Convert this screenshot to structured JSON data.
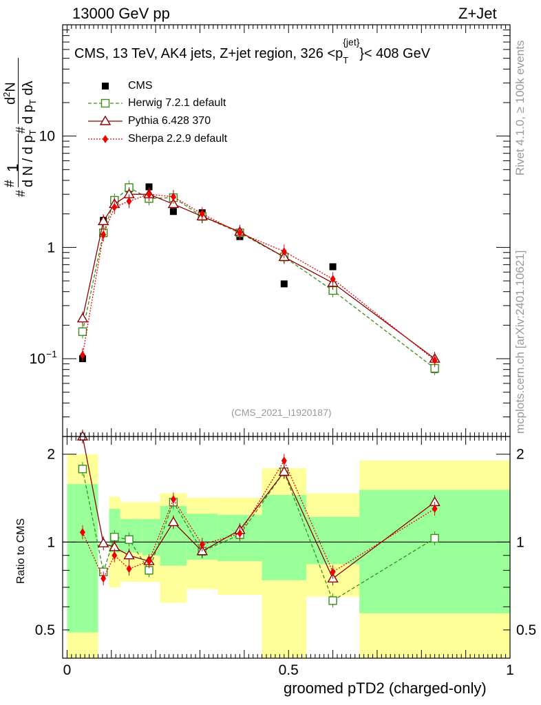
{
  "header": {
    "left": "13000 GeV pp",
    "right": "Z+Jet"
  },
  "side_text": {
    "rivet": "Rivet 4.1.0, ≥ 100k events",
    "mcplots": "mcplots.cern.ch [arXiv:2401.10621]"
  },
  "reference": "(CMS_2021_I1920187)",
  "colors": {
    "cms": "#000000",
    "herwig": "#3a8c1a",
    "pythia": "#8b0000",
    "sherpa": "#ee0000",
    "band_inner": "#99ff99",
    "band_outer": "#ffff99"
  },
  "chart_data": [
    {
      "type": "line",
      "title_main": "CMS, 13 TeV, AK4 jets, Z+jet region, 326 <p",
      "title_sup": "{jet}",
      "title_sub": "T",
      "title_end": "}< 408 GeV",
      "ylabel": {
        "n1": "#",
        "n2": "1",
        "d": "d N / d p",
        "d_sub": "T",
        "m1": "#",
        "m2": "d",
        "m_sup": "2",
        "m3": "N",
        "b": "d p",
        "b_sub": "T",
        "b2": " d",
        "lambda": "λ"
      },
      "yscale": "log",
      "ylim": [
        0.02,
        100
      ],
      "xlim": [
        -0.01,
        1.0
      ],
      "yticks": [
        {
          "v": 0.1,
          "t": "10",
          "sup": "−1"
        },
        {
          "v": 1,
          "t": "1",
          "sup": ""
        },
        {
          "v": 10,
          "t": "10",
          "sup": ""
        }
      ],
      "legend": [
        {
          "key": "cms",
          "label": "CMS"
        },
        {
          "key": "herwig",
          "label": "Herwig 7.2.1 default"
        },
        {
          "key": "pythia",
          "label": "Pythia 6.428 370"
        },
        {
          "key": "sherpa",
          "label": "Sherpa 2.2.9 default"
        }
      ],
      "bins": [
        0.0,
        0.07,
        0.095,
        0.12,
        0.17,
        0.21,
        0.27,
        0.34,
        0.44,
        0.54,
        0.66,
        1.0
      ],
      "series": [
        {
          "key": "cms",
          "name": "CMS",
          "x": [
            0.035,
            0.082,
            0.107,
            0.14,
            0.185,
            0.24,
            0.305,
            0.39,
            0.49,
            0.6,
            0.83
          ],
          "y": [
            0.1,
            1.75,
            2.55,
            3.35,
            3.5,
            2.1,
            2.05,
            1.25,
            0.47,
            0.67,
            0.08
          ]
        },
        {
          "key": "herwig",
          "name": "Herwig 7.2.1 default",
          "x": [
            0.035,
            0.082,
            0.107,
            0.14,
            0.185,
            0.24,
            0.305,
            0.39,
            0.49,
            0.6,
            0.83
          ],
          "y": [
            0.175,
            1.35,
            2.65,
            3.45,
            2.75,
            2.8,
            1.9,
            1.35,
            0.82,
            0.41,
            0.082
          ]
        },
        {
          "key": "pythia",
          "name": "Pythia 6.428 370",
          "x": [
            0.035,
            0.082,
            0.107,
            0.14,
            0.185,
            0.24,
            0.305,
            0.39,
            0.49,
            0.6,
            0.83
          ],
          "y": [
            0.23,
            1.72,
            2.45,
            3.0,
            3.0,
            2.45,
            1.9,
            1.38,
            0.82,
            0.48,
            0.1
          ]
        },
        {
          "key": "sherpa",
          "name": "Sherpa 2.2.9 default",
          "x": [
            0.035,
            0.082,
            0.107,
            0.14,
            0.185,
            0.24,
            0.305,
            0.39,
            0.49,
            0.6,
            0.83
          ],
          "y": [
            0.108,
            1.3,
            2.3,
            2.6,
            3.0,
            2.85,
            2.0,
            1.35,
            0.92,
            0.52,
            0.097
          ]
        }
      ]
    },
    {
      "type": "line",
      "ylabel": "Ratio to CMS",
      "xlabel": "groomed pTD2 (charged-only)",
      "yscale": "log",
      "ylim": [
        0.4,
        2.3
      ],
      "xlim": [
        -0.01,
        1.0
      ],
      "yticks": [
        {
          "v": 0.5,
          "t": "0.5"
        },
        {
          "v": 1,
          "t": "1"
        },
        {
          "v": 2,
          "t": "2"
        }
      ],
      "xticks": [
        {
          "v": 0,
          "t": "0"
        },
        {
          "v": 0.5,
          "t": "0.5"
        },
        {
          "v": 1,
          "t": "1"
        }
      ],
      "band_inner": [
        [
          0.49,
          1.58
        ],
        [
          1.0,
          1.0
        ],
        [
          0.92,
          1.3
        ],
        [
          0.92,
          1.2
        ],
        [
          0.9,
          1.2
        ],
        [
          0.83,
          1.33
        ],
        [
          0.87,
          1.25
        ],
        [
          0.86,
          1.24
        ],
        [
          0.74,
          1.45
        ],
        [
          0.84,
          1.22
        ],
        [
          0.57,
          1.51
        ]
      ],
      "band_outer": [
        [
          0.4,
          2.0
        ],
        [
          1.0,
          1.0
        ],
        [
          0.7,
          1.43
        ],
        [
          0.73,
          1.37
        ],
        [
          0.73,
          1.37
        ],
        [
          0.62,
          1.47
        ],
        [
          0.69,
          1.42
        ],
        [
          0.66,
          1.42
        ],
        [
          0.4,
          1.79
        ],
        [
          0.65,
          1.47
        ],
        [
          0.4,
          1.9
        ]
      ],
      "series": [
        {
          "key": "herwig",
          "name": "Herwig 7.2.1 default",
          "x": [
            0.035,
            0.082,
            0.107,
            0.14,
            0.185,
            0.24,
            0.305,
            0.39,
            0.49,
            0.6,
            0.83
          ],
          "y": [
            1.78,
            0.79,
            1.04,
            1.02,
            0.8,
            1.37,
            0.93,
            1.06,
            1.74,
            0.63,
            1.03
          ]
        },
        {
          "key": "pythia",
          "name": "Pythia 6.428 370",
          "x": [
            0.035,
            0.082,
            0.107,
            0.14,
            0.185,
            0.24,
            0.305,
            0.39,
            0.49,
            0.6,
            0.83
          ],
          "y": [
            2.3,
            0.99,
            0.96,
            0.9,
            0.86,
            1.17,
            0.93,
            1.1,
            1.74,
            0.75,
            1.37
          ]
        },
        {
          "key": "sherpa",
          "name": "Sherpa 2.2.9 default",
          "x": [
            0.035,
            0.082,
            0.107,
            0.14,
            0.185,
            0.24,
            0.305,
            0.39,
            0.49,
            0.6,
            0.83
          ],
          "y": [
            1.08,
            0.75,
            0.9,
            0.81,
            0.86,
            1.4,
            0.98,
            1.07,
            1.9,
            0.79,
            1.3
          ]
        }
      ]
    }
  ]
}
